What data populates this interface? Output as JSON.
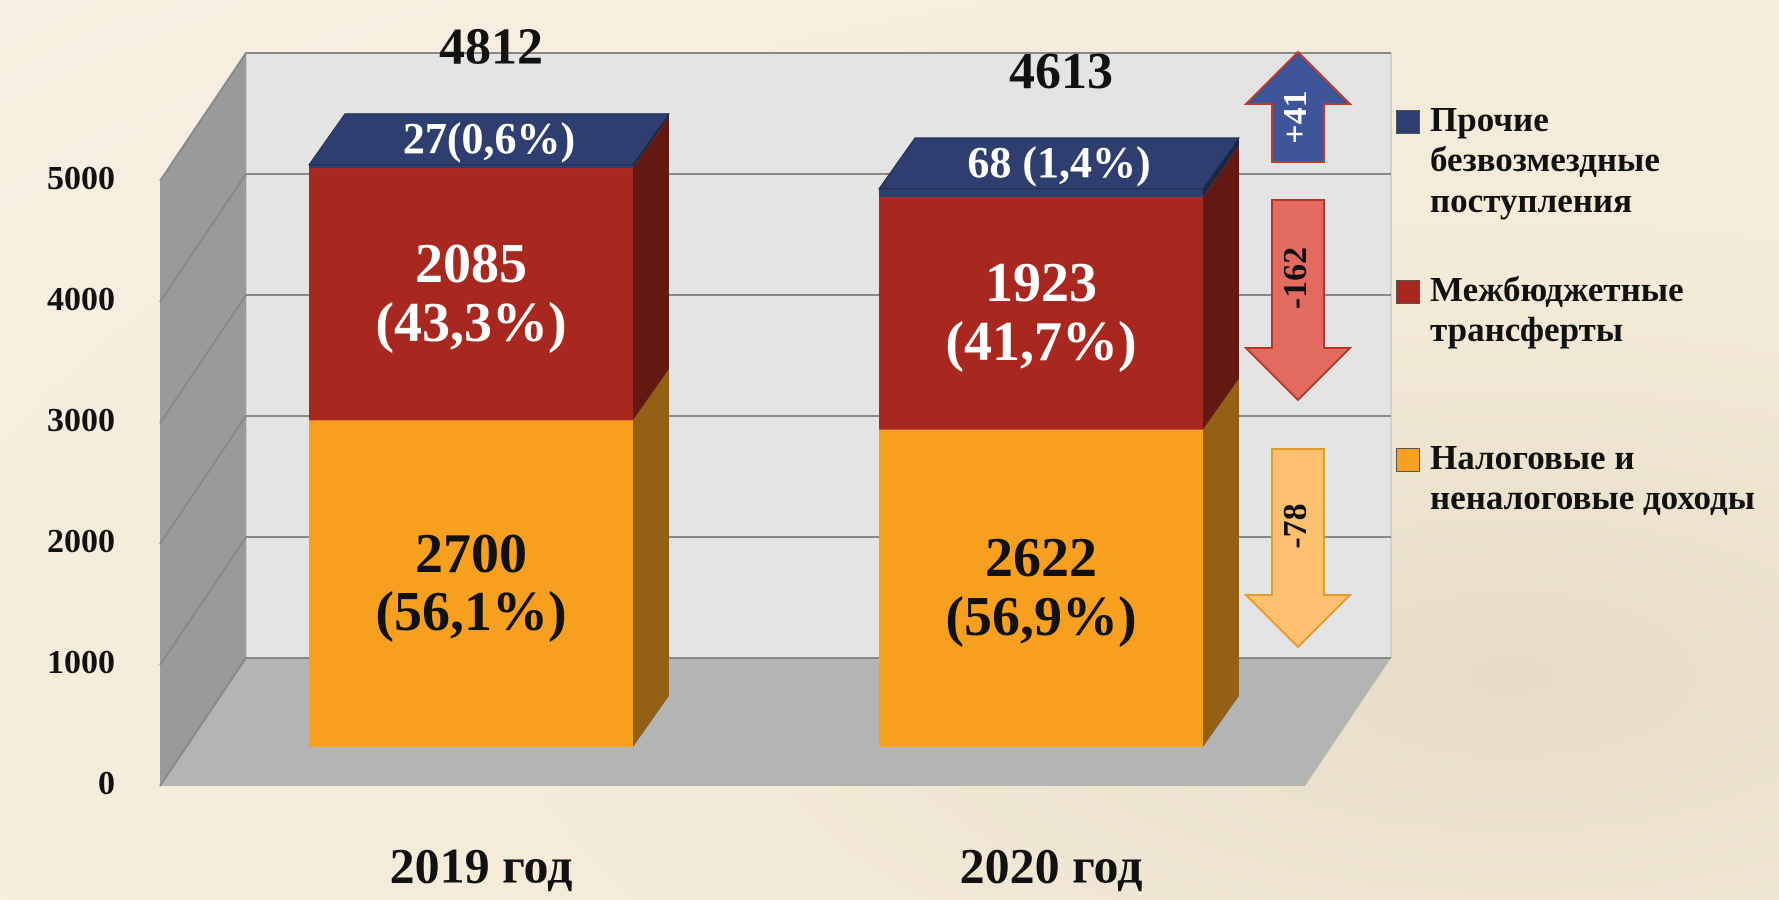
{
  "chart_data": {
    "type": "bar3d",
    "stacked": true,
    "categories": [
      "2019 год",
      "2020 год"
    ],
    "series": [
      {
        "name": "Налоговые и неналоговые доходы",
        "color": "#f7a020",
        "values": [
          2700,
          2622
        ],
        "value_labels": [
          "2700 (56,1%)",
          "2622 (56,9%)"
        ],
        "change": "-78"
      },
      {
        "name": "Межбюджетные трансферты",
        "color": "#a8281f",
        "values": [
          2085,
          1923
        ],
        "value_labels": [
          "2085 (43,3%)",
          "1923 (41,7%)"
        ],
        "change": "-162"
      },
      {
        "name": "Прочие безвозмездные поступления",
        "color": "#2e3e6e",
        "values": [
          27,
          68
        ],
        "value_labels": [
          "27(0,6%)",
          "68 (1,4%)"
        ],
        "change": "+41"
      }
    ],
    "totals": [
      4812,
      4613
    ],
    "ylim": [
      0,
      5000
    ],
    "yticks": [
      0,
      1000,
      2000,
      3000,
      4000,
      5000
    ],
    "grid": true,
    "legend": "right"
  }
}
